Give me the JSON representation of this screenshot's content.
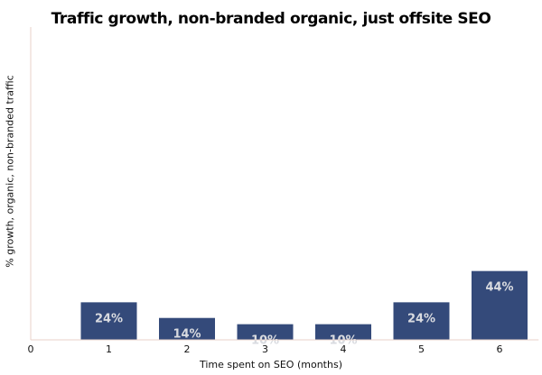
{
  "chart_data": {
    "type": "bar",
    "title": "Traffic growth, non-branded organic, just offsite SEO",
    "xlabel": "Time spent on SEO (months)",
    "ylabel": "% growth, organic, non-branded traffic",
    "x_ticks": [
      "0",
      "1",
      "2",
      "3",
      "4",
      "5",
      "6"
    ],
    "categories": [
      "1",
      "2",
      "3",
      "4",
      "5",
      "6"
    ],
    "values": [
      24,
      14,
      10,
      10,
      24,
      44
    ],
    "data_labels": [
      "24%",
      "14%",
      "10%",
      "10%",
      "24%",
      "44%"
    ],
    "xlim": [
      0,
      6.5
    ],
    "ylim": [
      0,
      200
    ],
    "grid": false,
    "bar_color": "#344a7a",
    "label_color": "#d9dbe0",
    "axis_color": "#e8d2c8"
  }
}
